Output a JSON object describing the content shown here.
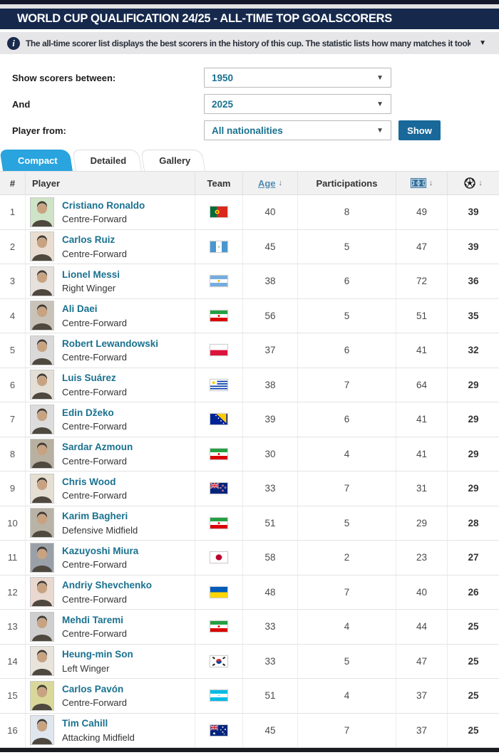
{
  "title_bar": {
    "title": "WORLD CUP QUALIFICATION 24/25 - ALL-TIME TOP GOALSCORERS"
  },
  "info_bar": {
    "text": "The all-time scorer list displays the best scorers in the history of this cup. The statistic lists how many matches it took each player to...",
    "caret": "▼"
  },
  "filters": {
    "between_label": "Show scorers between:",
    "between_value": "1950",
    "and_label": "And",
    "and_value": "2025",
    "player_from_label": "Player from:",
    "player_from_value": "All nationalities",
    "show_button": "Show",
    "caret": "▼"
  },
  "tabs": {
    "compact": "Compact",
    "detailed": "Detailed",
    "gallery": "Gallery"
  },
  "table": {
    "headers": {
      "rank": "#",
      "player": "Player",
      "team": "Team",
      "age": "Age",
      "participations": "Participations",
      "matches_icon": "pitch-icon",
      "goals_icon": "ball-icon",
      "sort_arrow": "↓"
    },
    "rows": [
      {
        "rank": 1,
        "name": "Cristiano Ronaldo",
        "position": "Centre-Forward",
        "nation": "Portugal",
        "age": 40,
        "participations": 8,
        "matches": 49,
        "goals": 39
      },
      {
        "rank": 2,
        "name": "Carlos Ruiz",
        "position": "Centre-Forward",
        "nation": "Guatemala",
        "age": 45,
        "participations": 5,
        "matches": 47,
        "goals": 39
      },
      {
        "rank": 3,
        "name": "Lionel Messi",
        "position": "Right Winger",
        "nation": "Argentina",
        "age": 38,
        "participations": 6,
        "matches": 72,
        "goals": 36
      },
      {
        "rank": 4,
        "name": "Ali Daei",
        "position": "Centre-Forward",
        "nation": "Iran",
        "age": 56,
        "participations": 5,
        "matches": 51,
        "goals": 35
      },
      {
        "rank": 5,
        "name": "Robert Lewandowski",
        "position": "Centre-Forward",
        "nation": "Poland",
        "age": 37,
        "participations": 6,
        "matches": 41,
        "goals": 32
      },
      {
        "rank": 6,
        "name": "Luis Suárez",
        "position": "Centre-Forward",
        "nation": "Uruguay",
        "age": 38,
        "participations": 7,
        "matches": 64,
        "goals": 29
      },
      {
        "rank": 7,
        "name": "Edin Džeko",
        "position": "Centre-Forward",
        "nation": "Bosnia-Herzegovina",
        "age": 39,
        "participations": 6,
        "matches": 41,
        "goals": 29
      },
      {
        "rank": 8,
        "name": "Sardar Azmoun",
        "position": "Centre-Forward",
        "nation": "Iran",
        "age": 30,
        "participations": 4,
        "matches": 41,
        "goals": 29
      },
      {
        "rank": 9,
        "name": "Chris Wood",
        "position": "Centre-Forward",
        "nation": "New Zealand",
        "age": 33,
        "participations": 7,
        "matches": 31,
        "goals": 29
      },
      {
        "rank": 10,
        "name": "Karim Bagheri",
        "position": "Defensive Midfield",
        "nation": "Iran",
        "age": 51,
        "participations": 5,
        "matches": 29,
        "goals": 28
      },
      {
        "rank": 11,
        "name": "Kazuyoshi Miura",
        "position": "Centre-Forward",
        "nation": "Japan",
        "age": 58,
        "participations": 2,
        "matches": 23,
        "goals": 27
      },
      {
        "rank": 12,
        "name": "Andriy Shevchenko",
        "position": "Centre-Forward",
        "nation": "Ukraine",
        "age": 48,
        "participations": 7,
        "matches": 40,
        "goals": 26
      },
      {
        "rank": 13,
        "name": "Mehdi Taremi",
        "position": "Centre-Forward",
        "nation": "Iran",
        "age": 33,
        "participations": 4,
        "matches": 44,
        "goals": 25
      },
      {
        "rank": 14,
        "name": "Heung-min Son",
        "position": "Left Winger",
        "nation": "South Korea",
        "age": 33,
        "participations": 5,
        "matches": 47,
        "goals": 25
      },
      {
        "rank": 15,
        "name": "Carlos Pavón",
        "position": "Centre-Forward",
        "nation": "Honduras",
        "age": 51,
        "participations": 4,
        "matches": 37,
        "goals": 25
      },
      {
        "rank": 16,
        "name": "Tim Cahill",
        "position": "Attacking Midfield",
        "nation": "Australia",
        "age": 45,
        "participations": 7,
        "matches": 37,
        "goals": 25
      }
    ]
  },
  "colors": {
    "navy": "#16294d",
    "accent_blue": "#29a4de",
    "link_teal": "#19718f",
    "button_blue": "#19689a"
  }
}
